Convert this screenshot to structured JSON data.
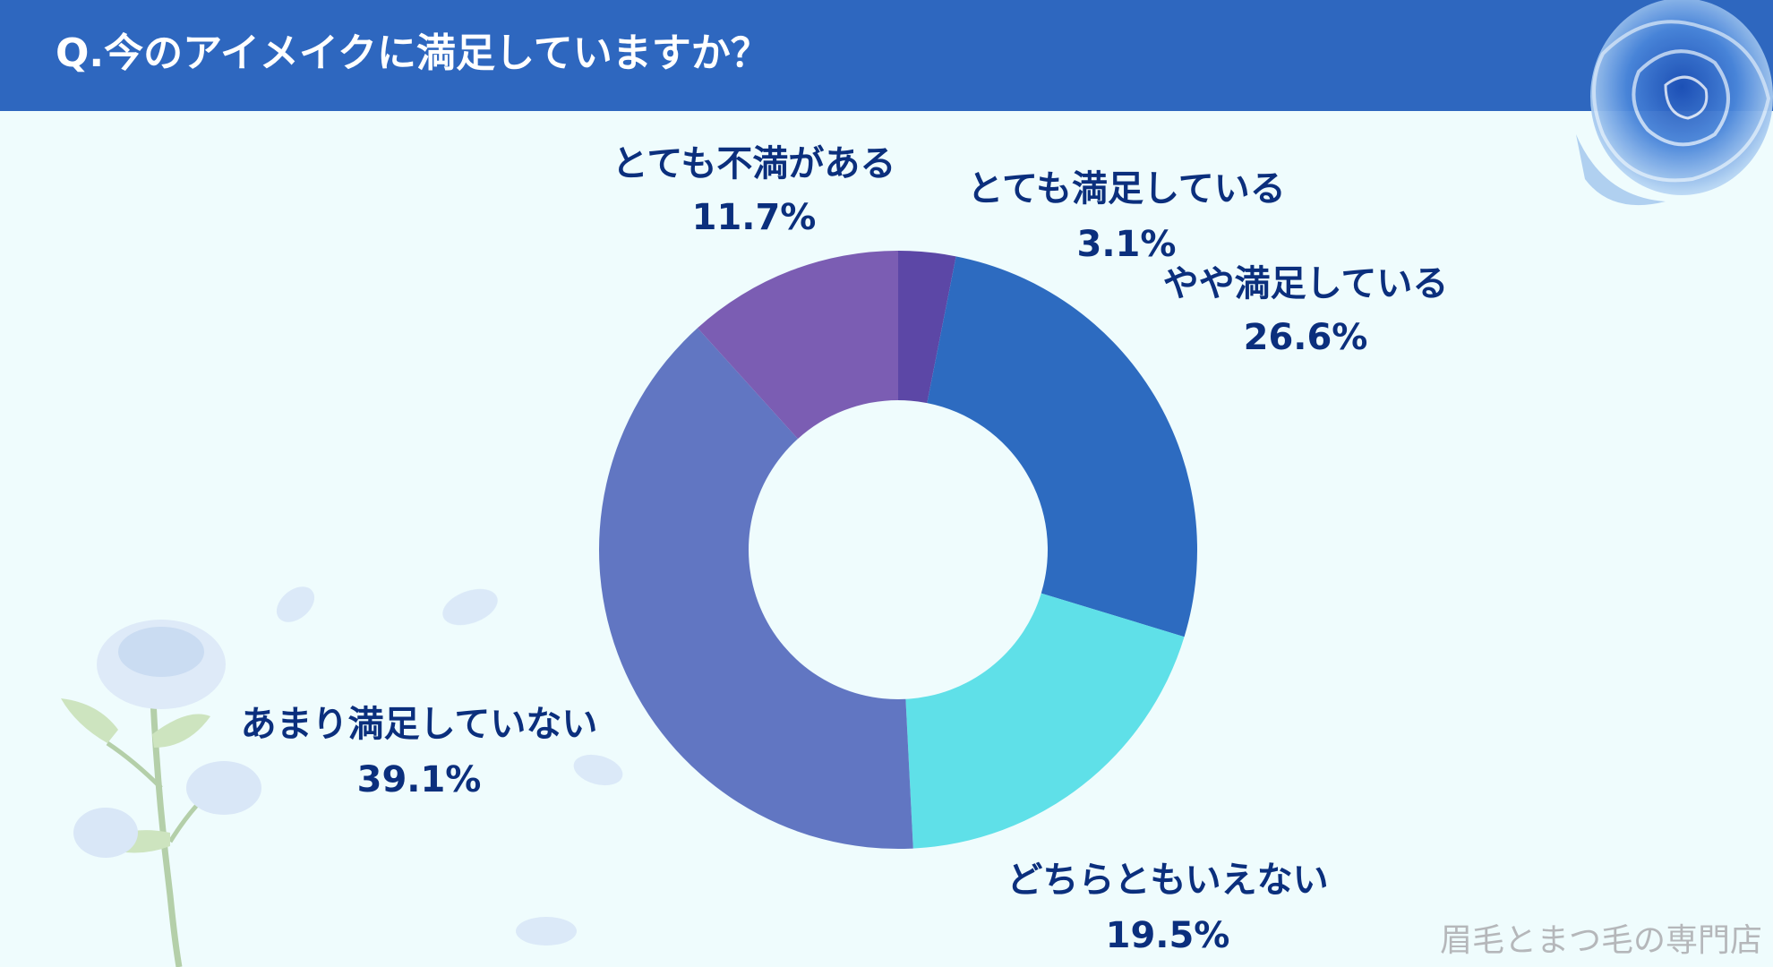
{
  "header": {
    "title": "Q.今のアイメイクに満足していますか？"
  },
  "footer": {
    "brand": "眉毛とまつ毛の専門店"
  },
  "colors": {
    "title_bar": "#2e67bf",
    "background": "#effcfd",
    "label_text": "#0b2f7d",
    "brand_text": "#b5b7ba"
  },
  "chart_data": {
    "type": "pie",
    "variant": "donut",
    "slices": [
      {
        "name": "とても満足している",
        "value": 3.1,
        "percent_label": "3.1%",
        "color": "#5c47a6"
      },
      {
        "name": "やや満足している",
        "value": 26.6,
        "percent_label": "26.6%",
        "color": "#2d6bc0"
      },
      {
        "name": "どちらともいえない",
        "value": 19.5,
        "percent_label": "19.5%",
        "color": "#5fe0e8"
      },
      {
        "name": "あまり満足していない",
        "value": 39.1,
        "percent_label": "39.1%",
        "color": "#6176c2"
      },
      {
        "name": "とても不満がある",
        "value": 11.7,
        "percent_label": "11.7%",
        "color": "#7b5db3"
      }
    ],
    "start": "12 o'clock",
    "direction": "clockwise",
    "legend": "none"
  },
  "decorations": {
    "top_right": "blue-rose-icon",
    "bottom_left": "blue-rose-stem-icon"
  }
}
